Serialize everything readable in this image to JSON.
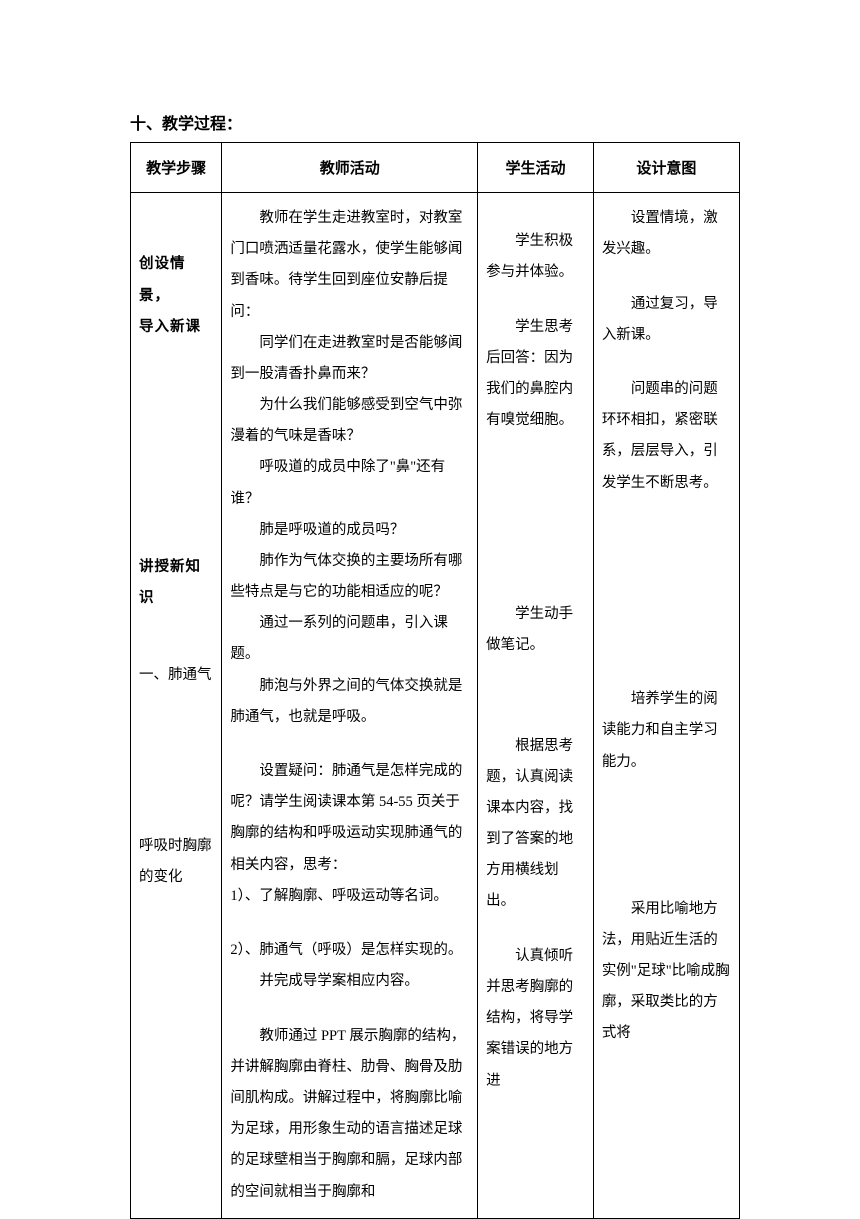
{
  "section_title": "十、教学过程：",
  "table": {
    "headers": {
      "step": "教学步骤",
      "teacher": "教师活动",
      "student": "学生活动",
      "intent": "设计意图"
    },
    "body": {
      "steps": {
        "s1_line1": "创设情景，",
        "s1_line2": "导入新课",
        "s2": "讲授新知识",
        "s3": "一、肺通气",
        "s4_line1": "呼吸时胸廓",
        "s4_line2": "的变化"
      },
      "teacher": {
        "p1": "教师在学生走进教室时，对教室门口喷洒适量花露水，使学生能够闻到香味。待学生回到座位安静后提问：",
        "p2": "同学们在走进教室时是否能够闻到一股清香扑鼻而来？",
        "p3": "为什么我们能够感受到空气中弥漫着的气味是香味？",
        "p4": "呼吸道的成员中除了\"鼻\"还有谁？",
        "p5": "肺是呼吸道的成员吗？",
        "p6": "肺作为气体交换的主要场所有哪些特点是与它的功能相适应的呢？",
        "p7": "通过一系列的问题串，引入课题。",
        "p8": "肺泡与外界之间的气体交换就是肺通气，也就是呼吸。",
        "p9": "设置疑问：肺通气是怎样完成的呢？请学生阅读课本第 54-55 页关于胸廓的结构和呼吸运动实现肺通气的相关内容，思考：",
        "p10": "1）、了解胸廓、呼吸运动等名词。",
        "p11": "2）、肺通气（呼吸）是怎样实现的。",
        "p12": "并完成导学案相应内容。",
        "p13": "教师通过 PPT 展示胸廓的结构，并讲解胸廓由脊柱、肋骨、胸骨及肋间肌构成。讲解过程中，将胸廓比喻为足球，用形象生动的语言描述足球的足球壁相当于胸廓和膈，足球内部的空间就相当于胸廓和"
      },
      "student": {
        "p1": "学生积极参与并体验。",
        "p2": "学生思考后回答：因为我们的鼻腔内有嗅觉细胞。",
        "p3": "学生动手做笔记。",
        "p4": "根据思考题，认真阅读课本内容，找到了答案的地方用横线划出。",
        "p5": "认真倾听并思考胸廓的结构，将导学案错误的地方进"
      },
      "intent": {
        "p1": "设置情境，激发兴趣。",
        "p2": "通过复习，导入新课。",
        "p3": "问题串的问题环环相扣，紧密联系，层层导入，引发学生不断思考。",
        "p4": "培养学生的阅读能力和自主学习能力。",
        "p5": "采用比喻地方法，用贴近生活的实例\"足球\"比喻成胸廓，采取类比的方式将"
      }
    }
  },
  "styling": {
    "background_color": "#ffffff",
    "text_color": "#000000",
    "border_color": "#000000",
    "title_fontsize": 16,
    "header_fontsize": 15,
    "body_fontsize": 14.5,
    "line_height": 2.15
  }
}
